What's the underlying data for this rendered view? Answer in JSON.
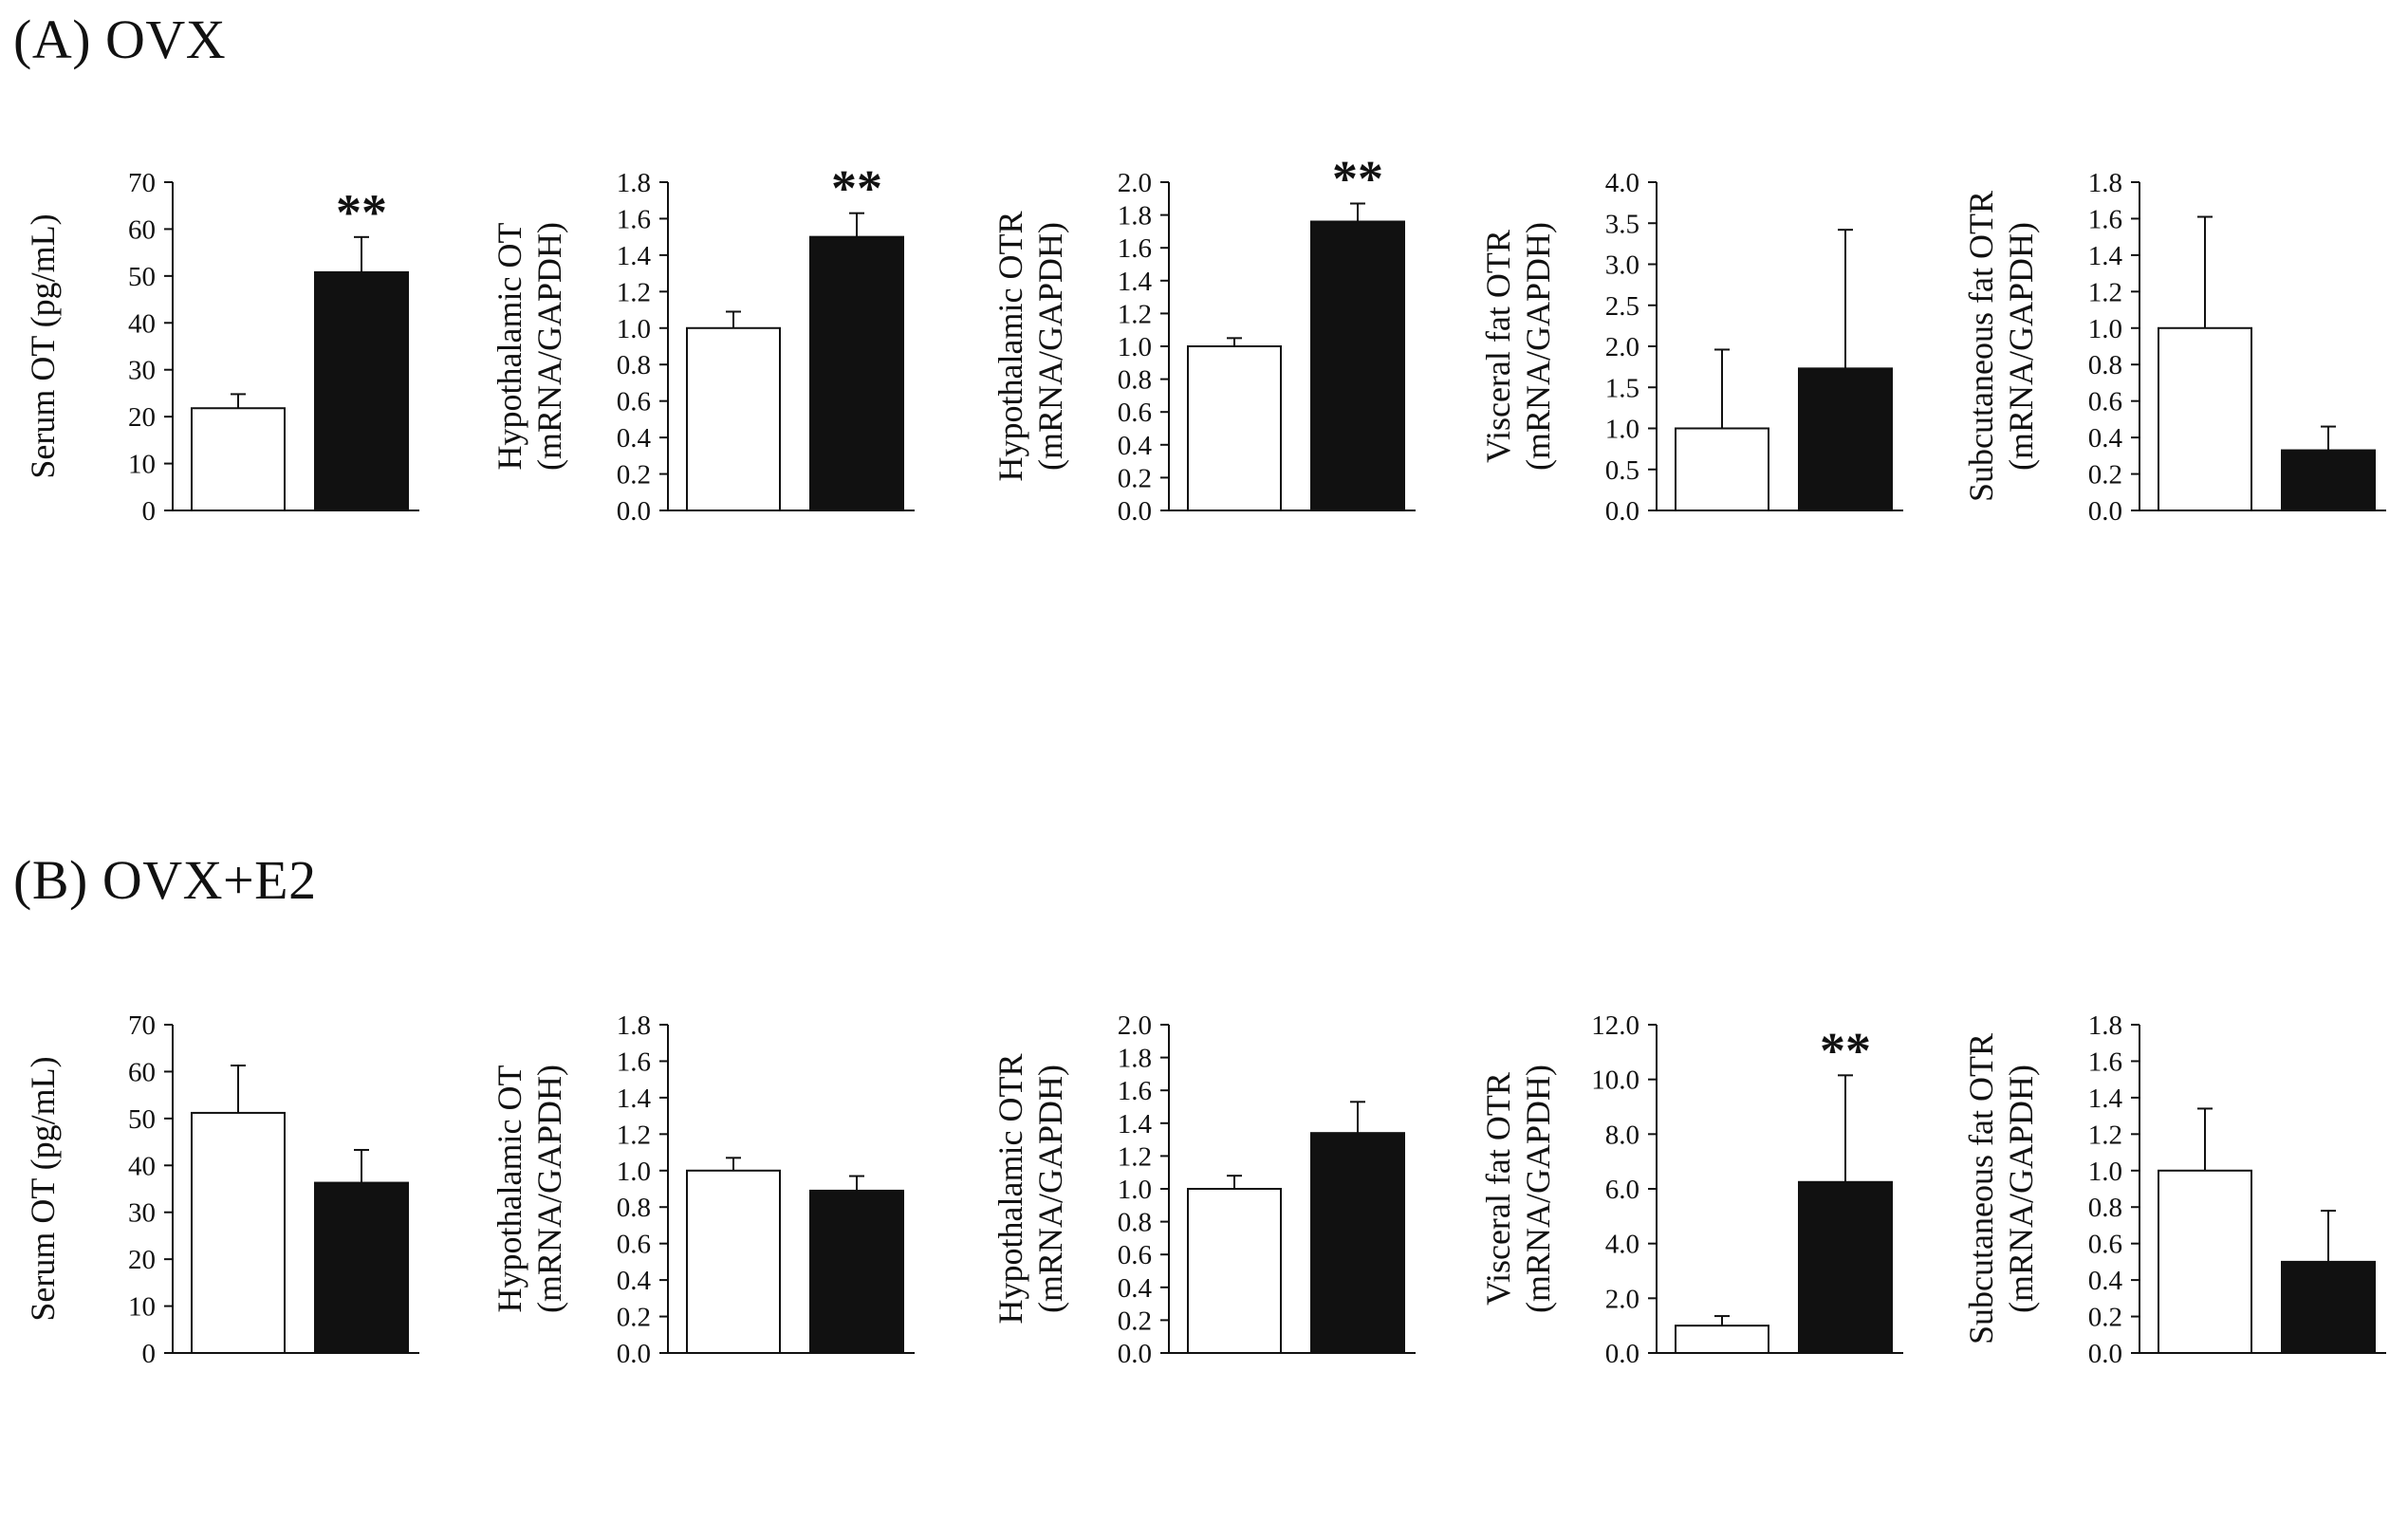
{
  "panels": [
    {
      "id": "A",
      "title": "(A)  OVX"
    },
    {
      "id": "B",
      "title": "(B)  OVX+E2"
    }
  ],
  "bar_colors": {
    "control": "#ffffff",
    "treated": "#111111",
    "stroke": "#111111"
  },
  "chart_data": [
    {
      "type": "bar",
      "panel": "A",
      "ylabel": [
        "Serum OT (pg/mL)"
      ],
      "ylim": [
        0,
        70
      ],
      "ticks": [
        "0",
        "10",
        "20",
        "30",
        "40",
        "50",
        "60",
        "70"
      ],
      "values": [
        21.8,
        50.8
      ],
      "errors": [
        3.0,
        7.5
      ],
      "sig": [
        "",
        "**"
      ]
    },
    {
      "type": "bar",
      "panel": "A",
      "ylabel": [
        "Hypothalamic OT",
        "(mRNA/GAPDH)"
      ],
      "ylim": [
        0,
        1.8
      ],
      "ticks": [
        "0.0",
        "0.2",
        "0.4",
        "0.6",
        "0.8",
        "1.0",
        "1.2",
        "1.4",
        "1.6",
        "1.8"
      ],
      "values": [
        1.0,
        1.5
      ],
      "errors": [
        0.09,
        0.13
      ],
      "sig": [
        "",
        "**"
      ]
    },
    {
      "type": "bar",
      "panel": "A",
      "ylabel": [
        "Hypothalamic OTR",
        "(mRNA/GAPDH)"
      ],
      "ylim": [
        0,
        2.0
      ],
      "ticks": [
        "0.0",
        "0.2",
        "0.4",
        "0.6",
        "0.8",
        "1.0",
        "1.2",
        "1.4",
        "1.6",
        "1.8",
        "2.0"
      ],
      "values": [
        1.0,
        1.76
      ],
      "errors": [
        0.05,
        0.11
      ],
      "sig": [
        "",
        "**"
      ]
    },
    {
      "type": "bar",
      "panel": "A",
      "ylabel": [
        "Visceral fat OTR",
        "(mRNA/GAPDH)"
      ],
      "ylim": [
        0,
        4.0
      ],
      "ticks": [
        "0.0",
        "0.5",
        "1.0",
        "1.5",
        "2.0",
        "2.5",
        "3.0",
        "3.5",
        "4.0"
      ],
      "values": [
        1.0,
        1.73
      ],
      "errors": [
        0.96,
        1.69
      ],
      "sig": [
        "",
        ""
      ]
    },
    {
      "type": "bar",
      "panel": "A",
      "ylabel": [
        "Subcutaneous fat OTR",
        "(mRNA/GAPDH)"
      ],
      "ylim": [
        0,
        1.8
      ],
      "ticks": [
        "0.0",
        "0.2",
        "0.4",
        "0.6",
        "0.8",
        "1.0",
        "1.2",
        "1.4",
        "1.6",
        "1.8"
      ],
      "values": [
        1.0,
        0.33
      ],
      "errors": [
        0.61,
        0.13
      ],
      "sig": [
        "",
        ""
      ]
    },
    {
      "type": "bar",
      "panel": "B",
      "ylabel": [
        "Serum OT (pg/mL)"
      ],
      "ylim": [
        0,
        70
      ],
      "ticks": [
        "0",
        "10",
        "20",
        "30",
        "40",
        "50",
        "60",
        "70"
      ],
      "values": [
        51.2,
        36.3
      ],
      "errors": [
        10.1,
        7.0
      ],
      "sig": [
        "",
        ""
      ]
    },
    {
      "type": "bar",
      "panel": "B",
      "ylabel": [
        "Hypothalamic OT",
        "(mRNA/GAPDH)"
      ],
      "ylim": [
        0,
        1.8
      ],
      "ticks": [
        "0.0",
        "0.2",
        "0.4",
        "0.6",
        "0.8",
        "1.0",
        "1.2",
        "1.4",
        "1.6",
        "1.8"
      ],
      "values": [
        1.0,
        0.89
      ],
      "errors": [
        0.07,
        0.08
      ],
      "sig": [
        "",
        ""
      ]
    },
    {
      "type": "bar",
      "panel": "B",
      "ylabel": [
        "Hypothalamic OTR",
        "(mRNA/GAPDH)"
      ],
      "ylim": [
        0,
        2.0
      ],
      "ticks": [
        "0.0",
        "0.2",
        "0.4",
        "0.6",
        "0.8",
        "1.0",
        "1.2",
        "1.4",
        "1.6",
        "1.8",
        "2.0"
      ],
      "values": [
        1.0,
        1.34
      ],
      "errors": [
        0.08,
        0.19
      ],
      "sig": [
        "",
        ""
      ]
    },
    {
      "type": "bar",
      "panel": "B",
      "ylabel": [
        "Visceral fat OTR",
        "(mRNA/GAPDH)"
      ],
      "ylim": [
        0,
        12.0
      ],
      "ticks": [
        "0.0",
        "2.0",
        "4.0",
        "6.0",
        "8.0",
        "10.0",
        "12.0"
      ],
      "values": [
        1.0,
        6.25
      ],
      "errors": [
        0.35,
        3.9
      ],
      "sig": [
        "",
        "**"
      ]
    },
    {
      "type": "bar",
      "panel": "B",
      "ylabel": [
        "Subcutaneous fat OTR",
        "(mRNA/GAPDH)"
      ],
      "ylim": [
        0,
        1.8
      ],
      "ticks": [
        "0.0",
        "0.2",
        "0.4",
        "0.6",
        "0.8",
        "1.0",
        "1.2",
        "1.4",
        "1.6",
        "1.8"
      ],
      "values": [
        1.0,
        0.5
      ],
      "errors": [
        0.34,
        0.28
      ],
      "sig": [
        "",
        ""
      ]
    }
  ]
}
